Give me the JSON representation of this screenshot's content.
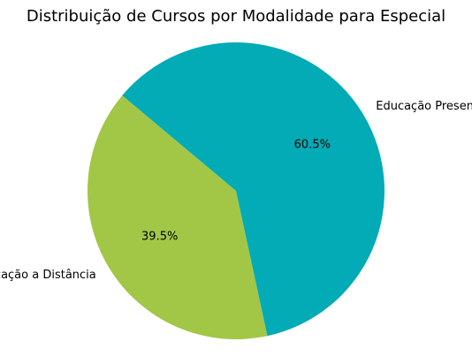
{
  "chart_data": {
    "type": "pie",
    "title": "Distribuição de Cursos por Modalidade para Especial",
    "slices": [
      {
        "label": "Educação a Distância",
        "value": 39.5,
        "pct_label": "39.5%",
        "color": "#a2c746"
      },
      {
        "label": "Educação Presencial",
        "value": 60.5,
        "pct_label": "60.5%",
        "color": "#02abb5"
      }
    ],
    "start_angle_deg": 140,
    "direction": "counterclockwise",
    "legend": "none"
  }
}
